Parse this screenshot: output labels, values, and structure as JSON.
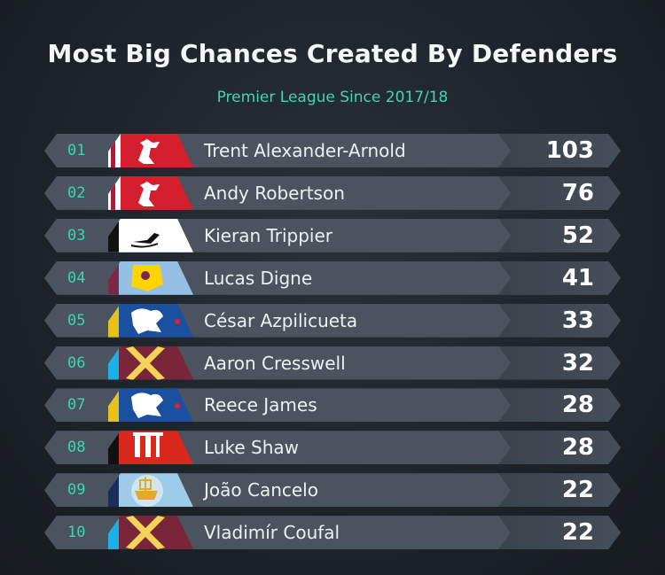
{
  "header": {
    "title": "Most Big Chances Created By Defenders",
    "subtitle": "Premier League Since 2017/18"
  },
  "colors": {
    "accent": "#3ed6b4",
    "background": "#1e242b",
    "text": "#eef1f4"
  },
  "chart_data": {
    "type": "table",
    "title": "Most Big Chances Created By Defenders",
    "subtitle": "Premier League Since 2017/18",
    "rows": [
      {
        "rank": "01",
        "player": "Trent Alexander-Arnold",
        "value": 103,
        "badge": "liverpool-crest-icon"
      },
      {
        "rank": "02",
        "player": "Andy Robertson",
        "value": 76,
        "badge": "liverpool-crest-icon"
      },
      {
        "rank": "03",
        "player": "Kieran Trippier",
        "value": 52,
        "badge": "newcastle-crest-icon"
      },
      {
        "rank": "04",
        "player": "Lucas Digne",
        "value": 41,
        "badge": "aston-villa-crest-icon"
      },
      {
        "rank": "05",
        "player": "César Azpilicueta",
        "value": 33,
        "badge": "chelsea-crest-icon"
      },
      {
        "rank": "06",
        "player": "Aaron Cresswell",
        "value": 32,
        "badge": "west-ham-crest-icon"
      },
      {
        "rank": "07",
        "player": "Reece James",
        "value": 28,
        "badge": "chelsea-crest-icon"
      },
      {
        "rank": "08",
        "player": "Luke Shaw",
        "value": 28,
        "badge": "man-united-crest-icon"
      },
      {
        "rank": "09",
        "player": "João Cancelo",
        "value": 22,
        "badge": "man-city-crest-icon"
      },
      {
        "rank": "10",
        "player": "Vladimír Coufal",
        "value": 22,
        "badge": "west-ham-crest-icon"
      }
    ]
  }
}
